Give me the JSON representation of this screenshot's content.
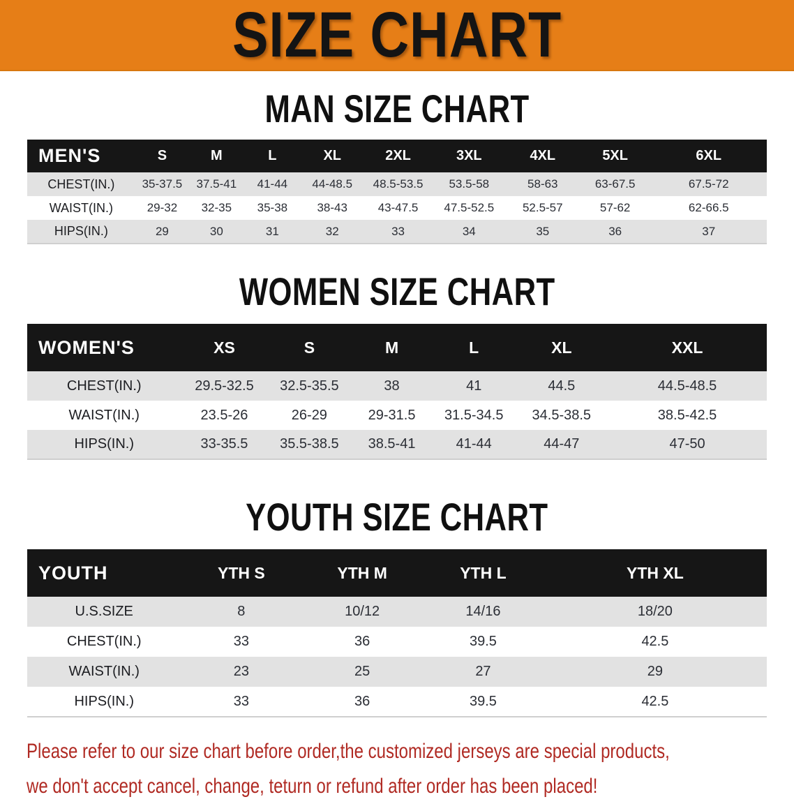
{
  "banner": {
    "title": "SIZE CHART"
  },
  "chart_data": [
    {
      "type": "table",
      "title": "MAN SIZE CHART",
      "header_label": "MEN'S",
      "columns": [
        "S",
        "M",
        "L",
        "XL",
        "2XL",
        "3XL",
        "4XL",
        "5XL",
        "6XL"
      ],
      "rows": [
        {
          "label": "CHEST(IN.)",
          "values": [
            "35-37.5",
            "37.5-41",
            "41-44",
            "44-48.5",
            "48.5-53.5",
            "53.5-58",
            "58-63",
            "63-67.5",
            "67.5-72"
          ]
        },
        {
          "label": "WAIST(IN.)",
          "values": [
            "29-32",
            "32-35",
            "35-38",
            "38-43",
            "43-47.5",
            "47.5-52.5",
            "52.5-57",
            "57-62",
            "62-66.5"
          ]
        },
        {
          "label": "HIPS(IN.)",
          "values": [
            "29",
            "30",
            "31",
            "32",
            "33",
            "34",
            "35",
            "36",
            "37"
          ]
        }
      ]
    },
    {
      "type": "table",
      "title": "WOMEN SIZE CHART",
      "header_label": "WOMEN'S",
      "columns": [
        "XS",
        "S",
        "M",
        "L",
        "XL",
        "XXL"
      ],
      "rows": [
        {
          "label": "CHEST(IN.)",
          "values": [
            "29.5-32.5",
            "32.5-35.5",
            "38",
            "41",
            "44.5",
            "44.5-48.5"
          ]
        },
        {
          "label": "WAIST(IN.)",
          "values": [
            "23.5-26",
            "26-29",
            "29-31.5",
            "31.5-34.5",
            "34.5-38.5",
            "38.5-42.5"
          ]
        },
        {
          "label": "HIPS(IN.)",
          "values": [
            "33-35.5",
            "35.5-38.5",
            "38.5-41",
            "41-44",
            "44-47",
            "47-50"
          ]
        }
      ]
    },
    {
      "type": "table",
      "title": "YOUTH SIZE CHART",
      "header_label": "YOUTH",
      "columns": [
        "YTH S",
        "YTH M",
        "YTH L",
        "YTH XL"
      ],
      "rows": [
        {
          "label": "U.S.SIZE",
          "values": [
            "8",
            "10/12",
            "14/16",
            "18/20"
          ]
        },
        {
          "label": "CHEST(IN.)",
          "values": [
            "33",
            "36",
            "39.5",
            "42.5"
          ]
        },
        {
          "label": "WAIST(IN.)",
          "values": [
            "23",
            "25",
            "27",
            "29"
          ]
        },
        {
          "label": "HIPS(IN.)",
          "values": [
            "33",
            "36",
            "39.5",
            "42.5"
          ]
        }
      ]
    }
  ],
  "notice": {
    "line1": "Please refer to our size chart before order,the customized jerseys are special products,",
    "line2": "we don't accept cancel, change, teturn or refund after order has been placed!"
  },
  "colors": {
    "banner_bg": "#E67E17",
    "header_bar": "#161616",
    "row_stripe": "#E2E2E2",
    "notice_text": "#B02A23"
  }
}
